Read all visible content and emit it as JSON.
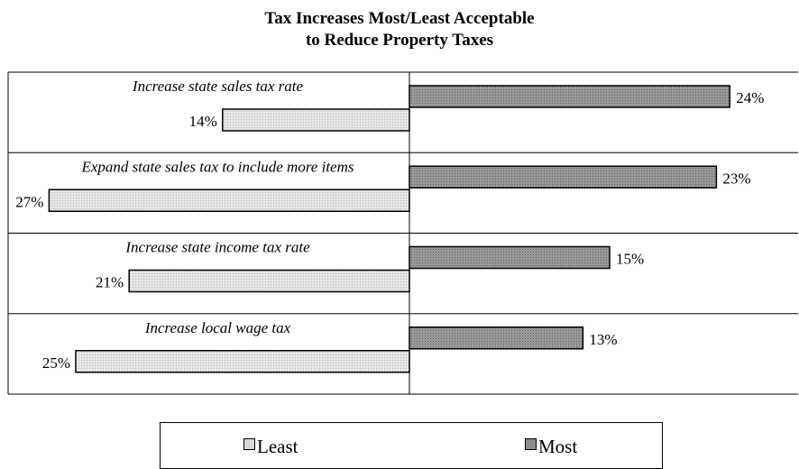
{
  "chart_data": {
    "type": "bar",
    "orientation": "horizontal-diverging",
    "title": "Tax Increases Most/Least Acceptable",
    "subtitle": "to Reduce Property Taxes",
    "categories": [
      "Increase state sales tax rate",
      "Expand state sales tax to include more items",
      "Increase state income tax rate",
      "Increase local wage tax"
    ],
    "series": [
      {
        "name": "Least",
        "values": [
          14,
          27,
          21,
          25
        ],
        "labels": [
          "14%",
          "27%",
          "21%",
          "25%"
        ],
        "color": "#d8d8d8",
        "direction": "left"
      },
      {
        "name": "Most",
        "values": [
          24,
          23,
          15,
          13
        ],
        "labels": [
          "24%",
          "23%",
          "15%",
          "13%"
        ],
        "color": "#8c8c8c",
        "direction": "right"
      }
    ],
    "value_unit": "%",
    "xlim": [
      0,
      30
    ],
    "grid": false,
    "legend": "bottom-center"
  }
}
